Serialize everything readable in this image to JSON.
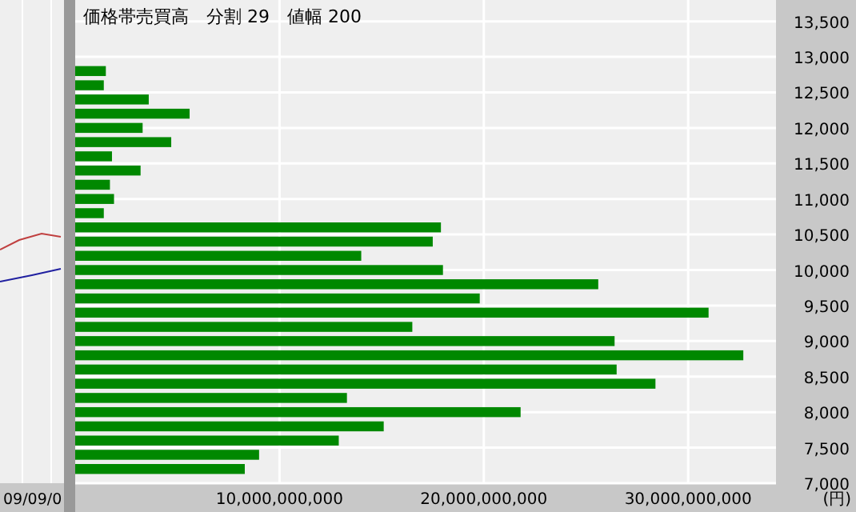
{
  "chart_data": {
    "type": "bar",
    "orientation": "horizontal",
    "title": "価格帯売買高　分割 29　値幅 200",
    "xlabel": "(円)",
    "x": [
      12800,
      12600,
      12400,
      12200,
      12000,
      11800,
      11600,
      11400,
      11200,
      11000,
      10800,
      10600,
      10400,
      10200,
      10000,
      9800,
      9600,
      9400,
      9200,
      9000,
      8800,
      8600,
      8400,
      8200,
      8000,
      7800,
      7600,
      7400,
      7200
    ],
    "values": [
      1500000000,
      1400000000,
      3600000000,
      5600000000,
      3300000000,
      4700000000,
      1800000000,
      3200000000,
      1700000000,
      1900000000,
      1400000000,
      17900000000,
      17500000000,
      14000000000,
      18000000000,
      25600000000,
      19800000000,
      31000000000,
      16500000000,
      26400000000,
      32700000000,
      26500000000,
      28400000000,
      13300000000,
      21800000000,
      15100000000,
      12900000000,
      9000000000,
      8300000000
    ],
    "color": "#008800",
    "xlim": [
      0,
      34300000000
    ],
    "xticks": [
      {
        "value": 10000000000,
        "label": "10,000,000,000"
      },
      {
        "value": 20000000000,
        "label": "20,000,000,000"
      },
      {
        "value": 30000000000,
        "label": "30,000,000,000"
      }
    ],
    "ylim": [
      7000,
      13800
    ],
    "yticks": [
      {
        "value": 7000,
        "label": "7,000"
      },
      {
        "value": 7500,
        "label": "7,500"
      },
      {
        "value": 8000,
        "label": "8,000"
      },
      {
        "value": 8500,
        "label": "8,500"
      },
      {
        "value": 9000,
        "label": "9,000"
      },
      {
        "value": 9500,
        "label": "9,500"
      },
      {
        "value": 10000,
        "label": "10,000"
      },
      {
        "value": 10500,
        "label": "10,500"
      },
      {
        "value": 11000,
        "label": "11,000"
      },
      {
        "value": 11500,
        "label": "11,500"
      },
      {
        "value": 12000,
        "label": "12,000"
      },
      {
        "value": 12500,
        "label": "12,500"
      },
      {
        "value": 13000,
        "label": "13,000"
      },
      {
        "value": 13500,
        "label": "13,500"
      }
    ],
    "grid": true,
    "annotations": [
      "09/09/0"
    ]
  }
}
